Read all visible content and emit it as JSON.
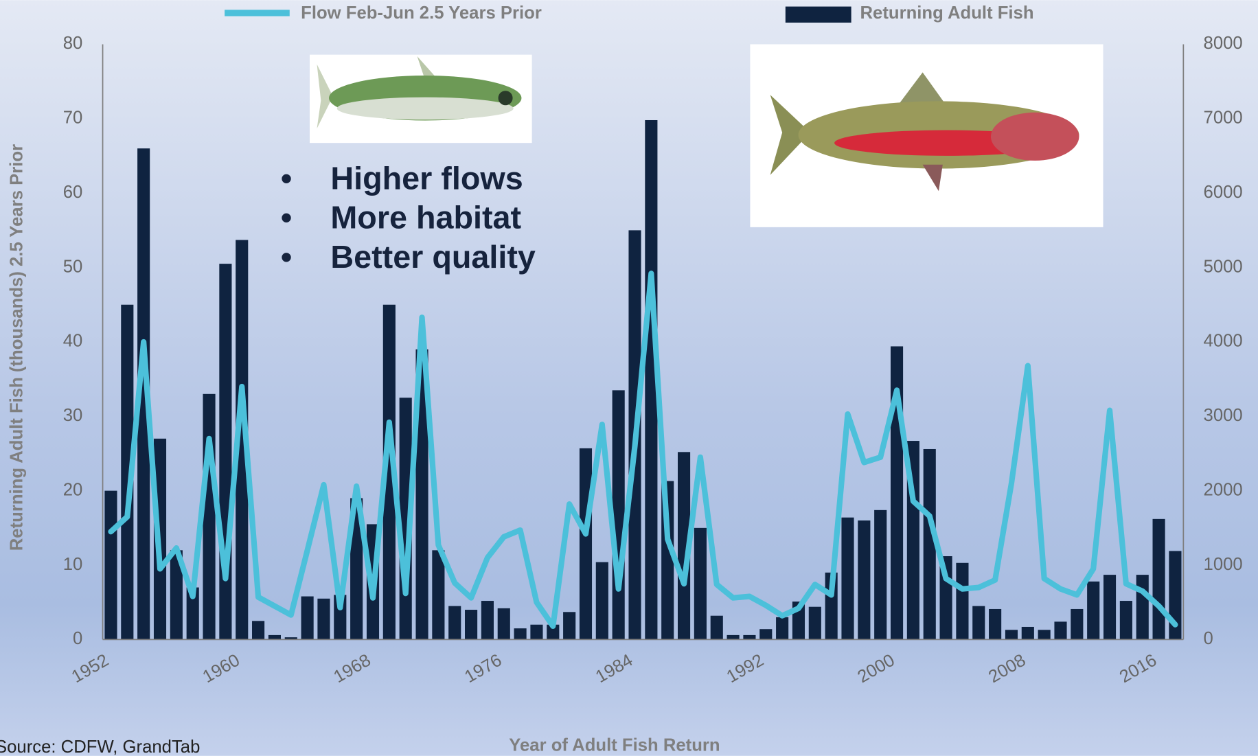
{
  "chart_data": {
    "type": "bar",
    "legend": [
      "Flow Feb-Jun 2.5 Years Prior",
      "Returning Adult Fish"
    ],
    "y_label": "Returning Adult Fish (thousands) 2.5 Years Prior",
    "x_label": "Year of Adult Fish Return",
    "source": "Source: CDFW, GrandTab",
    "annotations": [
      "Higher flows",
      "More habitat",
      "Better quality"
    ],
    "categories": [
      "1952",
      null,
      null,
      null,
      null,
      null,
      null,
      null,
      "1960",
      null,
      null,
      null,
      null,
      null,
      null,
      null,
      "1968",
      null,
      null,
      null,
      null,
      null,
      null,
      null,
      "1976",
      null,
      null,
      null,
      null,
      null,
      null,
      null,
      "1984",
      null,
      null,
      null,
      null,
      null,
      null,
      null,
      "1992",
      null,
      null,
      null,
      null,
      null,
      null,
      null,
      "2000",
      null,
      null,
      null,
      null,
      null,
      null,
      null,
      "2008",
      null,
      null,
      null,
      null,
      null,
      null,
      null,
      "2016",
      null
    ],
    "series": [
      {
        "name": "Flow Feb-Jun 2.5 Years Prior",
        "type": "line",
        "axis": "y2",
        "color": "#4cc0da",
        "values": [
          1450,
          1650,
          4000,
          950,
          1230,
          580,
          2700,
          820,
          3400,
          570,
          450,
          330,
          1200,
          2080,
          430,
          2060,
          560,
          2920,
          620,
          4330,
          1270,
          760,
          560,
          1100,
          1380,
          1470,
          500,
          180,
          1820,
          1420,
          2890,
          680,
          2600,
          4920,
          1350,
          750,
          2450,
          740,
          560,
          580,
          460,
          320,
          420,
          740,
          600,
          3030,
          2380,
          2450,
          3350,
          1860,
          1660,
          820,
          680,
          700,
          800,
          2100,
          3680,
          820,
          680,
          600,
          950,
          3080,
          750,
          650,
          450,
          200
        ]
      },
      {
        "name": "Returning Adult Fish",
        "type": "bar",
        "axis": "y",
        "color": "#0f2340",
        "values": [
          20,
          45,
          66,
          27,
          12,
          7,
          33,
          50.5,
          53.7,
          2.5,
          0.6,
          0.3,
          5.8,
          5.5,
          6,
          19,
          15.5,
          45,
          32.5,
          39,
          12,
          4.5,
          4,
          5.2,
          4.2,
          1.5,
          2,
          2,
          3.7,
          25.7,
          10.4,
          33.5,
          55,
          69.8,
          21.3,
          25.2,
          15,
          3.2,
          0.6,
          0.6,
          1.4,
          3,
          5.1,
          4.4,
          9,
          16.4,
          16,
          17.4,
          39.4,
          26.7,
          25.6,
          11.2,
          10.3,
          4.5,
          4.1,
          1.3,
          1.7,
          1.3,
          2.4,
          4.1,
          7.8,
          8.7,
          5.2,
          8.7,
          16.2,
          11.9
        ]
      }
    ],
    "ylim": [
      0,
      80
    ],
    "yticks": [
      0,
      10,
      20,
      30,
      40,
      50,
      60,
      70,
      80
    ],
    "y2lim": [
      0,
      8000
    ],
    "y2ticks": [
      0,
      1000,
      2000,
      3000,
      4000,
      5000,
      6000,
      7000,
      8000
    ],
    "grid": false
  }
}
